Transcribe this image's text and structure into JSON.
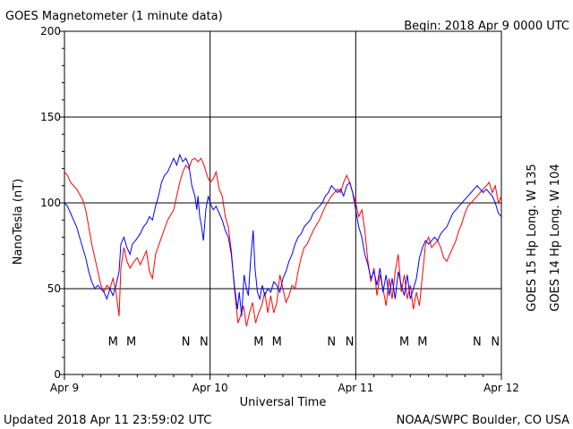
{
  "header": {
    "title": "GOES Magnetometer (1 minute data)",
    "begin": "Begin:  2018 Apr 9 0000 UTC"
  },
  "footer": {
    "updated": "Updated 2018 Apr 11 23:59:02 UTC",
    "credit": "NOAA/SWPC Boulder, CO USA"
  },
  "colors": {
    "goes15": "#ff0000",
    "goes14": "#0000ff",
    "grid": "#000000"
  },
  "chart_data": {
    "type": "line",
    "xlabel": "Universal Time",
    "ylabel": "NanoTesla (nT)",
    "ylim": [
      0,
      200
    ],
    "xlim": [
      0,
      72
    ],
    "x_units": "hours since 2018 Apr 9 0000 UTC",
    "x_ticks": [
      {
        "x": 0,
        "label": "Apr 9"
      },
      {
        "x": 24,
        "label": "Apr 10"
      },
      {
        "x": 48,
        "label": "Apr 11"
      },
      {
        "x": 72,
        "label": "Apr 12"
      }
    ],
    "y_ticks": [
      0,
      50,
      100,
      150,
      200
    ],
    "grid": true,
    "markers": [
      {
        "x": 8.0,
        "label": "M",
        "series": "goes14"
      },
      {
        "x": 11.0,
        "label": "M",
        "series": "goes15"
      },
      {
        "x": 20.0,
        "label": "N",
        "series": "goes14"
      },
      {
        "x": 23.0,
        "label": "N",
        "series": "goes15"
      },
      {
        "x": 32.0,
        "label": "M",
        "series": "goes14"
      },
      {
        "x": 35.0,
        "label": "M",
        "series": "goes15"
      },
      {
        "x": 44.0,
        "label": "N",
        "series": "goes14"
      },
      {
        "x": 47.0,
        "label": "N",
        "series": "goes15"
      },
      {
        "x": 56.0,
        "label": "M",
        "series": "goes14"
      },
      {
        "x": 59.0,
        "label": "M",
        "series": "goes15"
      },
      {
        "x": 68.0,
        "label": "N",
        "series": "goes14"
      },
      {
        "x": 71.0,
        "label": "N",
        "series": "goes15"
      }
    ],
    "series": [
      {
        "key": "goes15",
        "name": "GOES 15 Hp  Long. W 135",
        "points": [
          [
            0,
            118
          ],
          [
            0.5,
            116
          ],
          [
            1,
            112
          ],
          [
            2,
            108
          ],
          [
            3,
            102
          ],
          [
            3.5,
            96
          ],
          [
            4,
            86
          ],
          [
            4.5,
            76
          ],
          [
            5,
            68
          ],
          [
            5.5,
            60
          ],
          [
            6,
            52
          ],
          [
            6.5,
            48
          ],
          [
            7,
            52
          ],
          [
            7.5,
            50
          ],
          [
            8,
            56
          ],
          [
            8.5,
            48
          ],
          [
            9,
            34
          ],
          [
            9.3,
            62
          ],
          [
            9.8,
            74
          ],
          [
            10.3,
            66
          ],
          [
            10.8,
            62
          ],
          [
            11.5,
            66
          ],
          [
            12,
            68
          ],
          [
            12.5,
            64
          ],
          [
            13,
            68
          ],
          [
            13.5,
            72
          ],
          [
            14,
            60
          ],
          [
            14.5,
            56
          ],
          [
            15,
            70
          ],
          [
            16,
            80
          ],
          [
            17,
            90
          ],
          [
            18,
            96
          ],
          [
            18.5,
            104
          ],
          [
            19,
            112
          ],
          [
            19.5,
            118
          ],
          [
            20,
            122
          ],
          [
            20.5,
            120
          ],
          [
            21,
            125
          ],
          [
            21.5,
            126
          ],
          [
            22,
            124
          ],
          [
            22.5,
            126
          ],
          [
            23,
            122
          ],
          [
            23.5,
            116
          ],
          [
            24,
            112
          ],
          [
            24.5,
            114
          ],
          [
            25,
            118
          ],
          [
            25.5,
            108
          ],
          [
            26,
            104
          ],
          [
            26.5,
            92
          ],
          [
            27,
            86
          ],
          [
            27.5,
            72
          ],
          [
            28,
            50
          ],
          [
            28.3,
            40
          ],
          [
            28.6,
            30
          ],
          [
            29,
            34
          ],
          [
            29.5,
            40
          ],
          [
            30,
            28
          ],
          [
            30.5,
            36
          ],
          [
            31,
            42
          ],
          [
            31.5,
            30
          ],
          [
            32,
            36
          ],
          [
            32.5,
            40
          ],
          [
            33,
            48
          ],
          [
            33.5,
            36
          ],
          [
            34,
            46
          ],
          [
            34.5,
            36
          ],
          [
            35,
            42
          ],
          [
            35.5,
            58
          ],
          [
            36,
            50
          ],
          [
            36.5,
            42
          ],
          [
            37,
            46
          ],
          [
            37.5,
            52
          ],
          [
            38,
            50
          ],
          [
            38.5,
            60
          ],
          [
            39,
            68
          ],
          [
            39.5,
            74
          ],
          [
            40,
            76
          ],
          [
            41,
            84
          ],
          [
            42,
            90
          ],
          [
            43,
            98
          ],
          [
            44,
            104
          ],
          [
            45,
            108
          ],
          [
            45.5,
            106
          ],
          [
            46,
            112
          ],
          [
            46.5,
            116
          ],
          [
            47,
            112
          ],
          [
            47.5,
            106
          ],
          [
            48,
            100
          ],
          [
            48.5,
            92
          ],
          [
            49,
            96
          ],
          [
            49.5,
            84
          ],
          [
            50,
            66
          ],
          [
            50.5,
            54
          ],
          [
            51,
            62
          ],
          [
            51.5,
            46
          ],
          [
            52,
            58
          ],
          [
            52.5,
            50
          ],
          [
            53,
            40
          ],
          [
            53.5,
            56
          ],
          [
            54,
            44
          ],
          [
            54.5,
            60
          ],
          [
            55,
            70
          ],
          [
            55.5,
            48
          ],
          [
            56,
            58
          ],
          [
            56.5,
            44
          ],
          [
            57,
            52
          ],
          [
            57.5,
            38
          ],
          [
            58,
            48
          ],
          [
            58.5,
            40
          ],
          [
            59,
            58
          ],
          [
            59.5,
            76
          ],
          [
            60,
            80
          ],
          [
            60.5,
            74
          ],
          [
            61,
            76
          ],
          [
            61.5,
            78
          ],
          [
            62,
            74
          ],
          [
            62.5,
            68
          ],
          [
            63,
            66
          ],
          [
            63.5,
            70
          ],
          [
            64,
            74
          ],
          [
            64.5,
            78
          ],
          [
            65,
            84
          ],
          [
            65.5,
            88
          ],
          [
            66,
            94
          ],
          [
            66.5,
            98
          ],
          [
            67,
            100
          ],
          [
            67.5,
            102
          ],
          [
            68,
            104
          ],
          [
            68.5,
            106
          ],
          [
            69,
            108
          ],
          [
            69.5,
            110
          ],
          [
            70,
            112
          ],
          [
            70.5,
            106
          ],
          [
            71,
            110
          ],
          [
            71.5,
            100
          ],
          [
            72,
            104
          ]
        ]
      },
      {
        "key": "goes14",
        "name": "GOES 14 Hp  Long. W 104",
        "points": [
          [
            0,
            100
          ],
          [
            0.5,
            98
          ],
          [
            1,
            94
          ],
          [
            1.5,
            90
          ],
          [
            2,
            86
          ],
          [
            2.5,
            80
          ],
          [
            3,
            74
          ],
          [
            3.5,
            68
          ],
          [
            4,
            60
          ],
          [
            4.5,
            54
          ],
          [
            5,
            50
          ],
          [
            5.5,
            52
          ],
          [
            6,
            50
          ],
          [
            6.5,
            48
          ],
          [
            7,
            44
          ],
          [
            7.5,
            50
          ],
          [
            8,
            46
          ],
          [
            8.5,
            52
          ],
          [
            9,
            60
          ],
          [
            9.3,
            76
          ],
          [
            9.8,
            80
          ],
          [
            10.3,
            74
          ],
          [
            10.8,
            70
          ],
          [
            11.2,
            76
          ],
          [
            11.7,
            78
          ],
          [
            12.5,
            82
          ],
          [
            13,
            86
          ],
          [
            13.5,
            88
          ],
          [
            14,
            92
          ],
          [
            14.5,
            90
          ],
          [
            15,
            98
          ],
          [
            15.5,
            104
          ],
          [
            16,
            112
          ],
          [
            16.5,
            116
          ],
          [
            17,
            118
          ],
          [
            17.5,
            122
          ],
          [
            18,
            126
          ],
          [
            18.5,
            122
          ],
          [
            19,
            128
          ],
          [
            19.5,
            124
          ],
          [
            20,
            126
          ],
          [
            20.5,
            122
          ],
          [
            21,
            110
          ],
          [
            21.5,
            104
          ],
          [
            21.8,
            96
          ],
          [
            22,
            104
          ],
          [
            22.3,
            92
          ],
          [
            22.6,
            86
          ],
          [
            22.9,
            78
          ],
          [
            23.3,
            96
          ],
          [
            23.7,
            104
          ],
          [
            24,
            100
          ],
          [
            24.5,
            96
          ],
          [
            25,
            98
          ],
          [
            25.5,
            94
          ],
          [
            26,
            90
          ],
          [
            26.5,
            84
          ],
          [
            27,
            80
          ],
          [
            27.5,
            70
          ],
          [
            28,
            52
          ],
          [
            28.5,
            38
          ],
          [
            28.8,
            48
          ],
          [
            29.2,
            34
          ],
          [
            29.6,
            58
          ],
          [
            30,
            50
          ],
          [
            30.3,
            46
          ],
          [
            30.7,
            68
          ],
          [
            31.1,
            84
          ],
          [
            31.4,
            62
          ],
          [
            31.8,
            48
          ],
          [
            32.2,
            44
          ],
          [
            32.6,
            52
          ],
          [
            33,
            46
          ],
          [
            33.5,
            50
          ],
          [
            34,
            48
          ],
          [
            34.5,
            54
          ],
          [
            35,
            52
          ],
          [
            35.5,
            48
          ],
          [
            36,
            56
          ],
          [
            36.5,
            60
          ],
          [
            37,
            66
          ],
          [
            37.5,
            70
          ],
          [
            38,
            76
          ],
          [
            38.5,
            80
          ],
          [
            39,
            82
          ],
          [
            39.5,
            86
          ],
          [
            40,
            88
          ],
          [
            40.5,
            90
          ],
          [
            41,
            94
          ],
          [
            41.5,
            96
          ],
          [
            42,
            98
          ],
          [
            42.5,
            100
          ],
          [
            43,
            104
          ],
          [
            43.5,
            106
          ],
          [
            44,
            110
          ],
          [
            44.5,
            108
          ],
          [
            45,
            106
          ],
          [
            45.5,
            108
          ],
          [
            46,
            104
          ],
          [
            46.5,
            110
          ],
          [
            47,
            112
          ],
          [
            47.5,
            106
          ],
          [
            48,
            96
          ],
          [
            48.5,
            86
          ],
          [
            49,
            80
          ],
          [
            49.5,
            70
          ],
          [
            50,
            64
          ],
          [
            50.5,
            56
          ],
          [
            51,
            60
          ],
          [
            51.5,
            52
          ],
          [
            52,
            62
          ],
          [
            52.5,
            48
          ],
          [
            53,
            58
          ],
          [
            53.5,
            46
          ],
          [
            54,
            56
          ],
          [
            54.5,
            44
          ],
          [
            55,
            60
          ],
          [
            55.5,
            52
          ],
          [
            56,
            46
          ],
          [
            56.5,
            58
          ],
          [
            57,
            44
          ],
          [
            57.5,
            50
          ],
          [
            58,
            56
          ],
          [
            58.5,
            68
          ],
          [
            59,
            74
          ],
          [
            59.5,
            78
          ],
          [
            60,
            76
          ],
          [
            60.5,
            78
          ],
          [
            61,
            80
          ],
          [
            61.5,
            78
          ],
          [
            62,
            82
          ],
          [
            62.5,
            84
          ],
          [
            63,
            86
          ],
          [
            63.5,
            90
          ],
          [
            64,
            94
          ],
          [
            64.5,
            96
          ],
          [
            65,
            98
          ],
          [
            65.5,
            100
          ],
          [
            66,
            102
          ],
          [
            66.5,
            104
          ],
          [
            67,
            106
          ],
          [
            67.5,
            108
          ],
          [
            68,
            110
          ],
          [
            68.5,
            108
          ],
          [
            69,
            106
          ],
          [
            69.5,
            108
          ],
          [
            70,
            106
          ],
          [
            70.5,
            104
          ],
          [
            71,
            100
          ],
          [
            71.5,
            94
          ],
          [
            72,
            92
          ]
        ]
      }
    ]
  }
}
